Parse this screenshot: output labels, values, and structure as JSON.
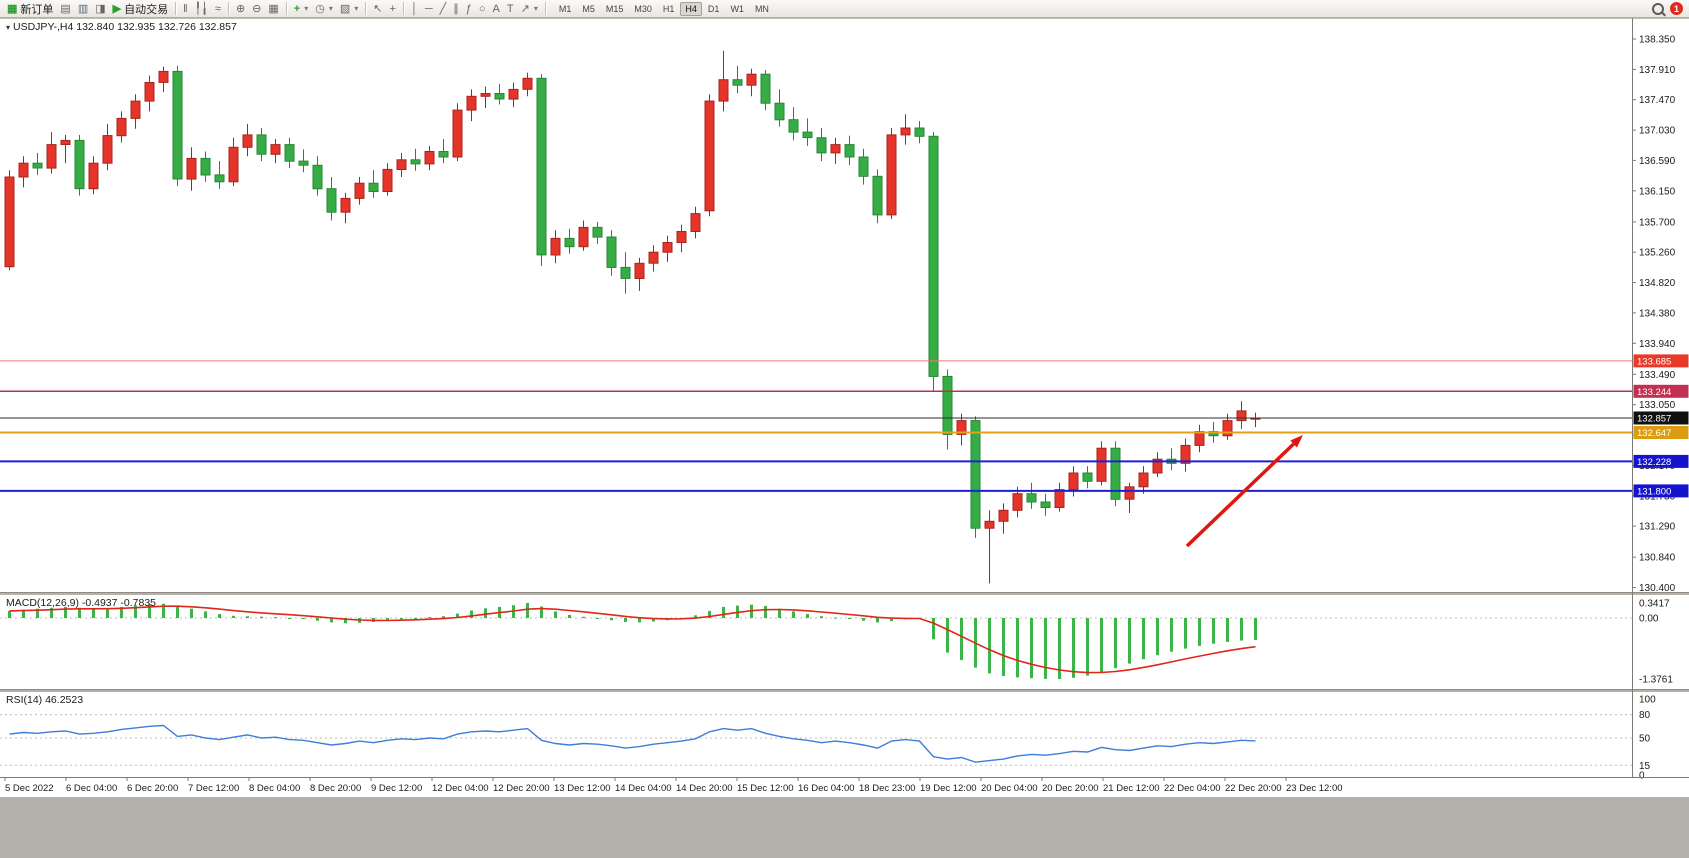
{
  "ui": {
    "toolbar": {
      "new_order_label": "新订单",
      "auto_trading_label": "自动交易",
      "timeframes": [
        "M1",
        "M5",
        "M15",
        "M30",
        "H1",
        "H4",
        "D1",
        "W1",
        "MN"
      ],
      "active_timeframe": "H4",
      "notification_count": "1",
      "icons": {
        "new_order": "▦",
        "chart_window": "▤",
        "profiles": "▥",
        "market_watch": "◨",
        "play": "▶",
        "bar_chart": "‖",
        "candlestick": "╿╽",
        "line_chart": "≈",
        "zoom_in": "⊕",
        "zoom_out": "⊖",
        "tile_windows": "▦",
        "indicators": "+",
        "periods": "◷",
        "templates": "▧",
        "cursor": "↖",
        "crosshair": "+",
        "vertical_line": "│",
        "horizontal_line": "─",
        "trendline": "╱",
        "channel": "∥",
        "fibonacci": "ƒ",
        "ellipse": "○",
        "text": "A",
        "label": "T",
        "arrows": "↗",
        "caret": "▾",
        "collapse": "▾"
      }
    },
    "symbol_header": "USDJPY-,H4 132.840 132.935 132.726 132.857",
    "macd_label": "MACD(12,26,9) -0.4937 -0.7835",
    "rsi_label": "RSI(14) 46.2523"
  },
  "chart_data": [
    {
      "type": "candlestick",
      "title": "USDJPY-,H4",
      "current_ohlc": {
        "open": "132.840",
        "high": "132.935",
        "low": "132.726",
        "close": "132.857"
      },
      "ylim": [
        130.4,
        138.35
      ],
      "y_ticks": [
        "138.350",
        "137.910",
        "137.470",
        "137.030",
        "136.590",
        "136.150",
        "135.700",
        "135.260",
        "134.820",
        "134.380",
        "133.940",
        "133.490",
        "133.050",
        "132.610",
        "132.170",
        "131.730",
        "131.290",
        "130.840",
        "130.400"
      ],
      "x_labels": [
        "5 Dec 2022",
        "6 Dec 04:00",
        "6 Dec 20:00",
        "7 Dec 12:00",
        "8 Dec 04:00",
        "8 Dec 20:00",
        "9 Dec 12:00",
        "12 Dec 04:00",
        "12 Dec 20:00",
        "13 Dec 12:00",
        "14 Dec 04:00",
        "14 Dec 20:00",
        "15 Dec 12:00",
        "16 Dec 04:00",
        "18 Dec 23:00",
        "19 Dec 12:00",
        "20 Dec 04:00",
        "20 Dec 20:00",
        "21 Dec 12:00",
        "22 Dec 04:00",
        "22 Dec 20:00",
        "23 Dec 12:00"
      ],
      "colors": {
        "up": "#e5352b",
        "up_border": "#a8241c",
        "down": "#35ad44",
        "down_border": "#278734"
      },
      "horizontal_lines": [
        {
          "price": 133.685,
          "label": "133.685",
          "color": "#f27a6a",
          "tag": "#e8392b",
          "width": 1
        },
        {
          "price": 133.244,
          "label": "133.244",
          "color": "#b23358",
          "tag": "#c22f52",
          "width": 1.5
        },
        {
          "price": 132.857,
          "label": "132.857",
          "color": "#2d2d2d",
          "tag": "#101010",
          "width": 1
        },
        {
          "price": 132.647,
          "label": "132.647",
          "color": "#e5a117",
          "tag": "#dd9c10",
          "width": 2
        },
        {
          "price": 132.228,
          "label": "132.228",
          "color": "#1f1fd6",
          "tag": "#1414cf",
          "width": 2
        },
        {
          "price": 131.8,
          "label": "131.800",
          "color": "#1f1fd6",
          "tag": "#1414cf",
          "width": 2
        }
      ],
      "annotation_arrow": {
        "from": [
          1187,
          546
        ],
        "to": [
          1303,
          435
        ],
        "color": "#e0170e"
      },
      "ohlc": [
        [
          135.05,
          136.45,
          135.0,
          136.35
        ],
        [
          136.35,
          136.65,
          136.2,
          136.55
        ],
        [
          136.55,
          136.7,
          136.38,
          136.48
        ],
        [
          136.48,
          137.0,
          136.4,
          136.82
        ],
        [
          136.82,
          136.96,
          136.55,
          136.88
        ],
        [
          136.88,
          136.96,
          136.08,
          136.18
        ],
        [
          136.18,
          136.65,
          136.1,
          136.55
        ],
        [
          136.55,
          137.12,
          136.45,
          136.95
        ],
        [
          136.95,
          137.3,
          136.85,
          137.2
        ],
        [
          137.2,
          137.55,
          137.05,
          137.45
        ],
        [
          137.45,
          137.82,
          137.3,
          137.72
        ],
        [
          137.72,
          137.95,
          137.58,
          137.88
        ],
        [
          137.88,
          137.96,
          136.22,
          136.32
        ],
        [
          136.32,
          136.78,
          136.15,
          136.62
        ],
        [
          136.62,
          136.72,
          136.28,
          136.38
        ],
        [
          136.38,
          136.58,
          136.18,
          136.28
        ],
        [
          136.28,
          136.92,
          136.22,
          136.78
        ],
        [
          136.78,
          137.12,
          136.65,
          136.96
        ],
        [
          136.96,
          137.06,
          136.58,
          136.68
        ],
        [
          136.68,
          136.9,
          136.55,
          136.82
        ],
        [
          136.82,
          136.92,
          136.48,
          136.58
        ],
        [
          136.58,
          136.75,
          136.42,
          136.52
        ],
        [
          136.52,
          136.65,
          136.08,
          136.18
        ],
        [
          136.18,
          136.35,
          135.72,
          135.84
        ],
        [
          135.84,
          136.12,
          135.68,
          136.04
        ],
        [
          136.04,
          136.35,
          135.95,
          136.26
        ],
        [
          136.26,
          136.45,
          136.05,
          136.14
        ],
        [
          136.14,
          136.55,
          136.08,
          136.46
        ],
        [
          136.46,
          136.7,
          136.35,
          136.6
        ],
        [
          136.6,
          136.76,
          136.44,
          136.54
        ],
        [
          136.54,
          136.8,
          136.45,
          136.72
        ],
        [
          136.72,
          136.9,
          136.55,
          136.64
        ],
        [
          136.64,
          137.42,
          136.58,
          137.32
        ],
        [
          137.32,
          137.62,
          137.16,
          137.52
        ],
        [
          137.52,
          137.66,
          137.35,
          137.56
        ],
        [
          137.56,
          137.7,
          137.4,
          137.48
        ],
        [
          137.48,
          137.72,
          137.36,
          137.62
        ],
        [
          137.62,
          137.86,
          137.52,
          137.78
        ],
        [
          137.78,
          137.84,
          135.06,
          135.22
        ],
        [
          135.22,
          135.58,
          135.1,
          135.46
        ],
        [
          135.46,
          135.6,
          135.24,
          135.34
        ],
        [
          135.34,
          135.72,
          135.28,
          135.62
        ],
        [
          135.62,
          135.7,
          135.38,
          135.48
        ],
        [
          135.48,
          135.58,
          134.92,
          135.04
        ],
        [
          135.04,
          135.26,
          134.66,
          134.88
        ],
        [
          134.88,
          135.18,
          134.7,
          135.1
        ],
        [
          135.1,
          135.36,
          134.98,
          135.26
        ],
        [
          135.26,
          135.5,
          135.12,
          135.4
        ],
        [
          135.4,
          135.66,
          135.26,
          135.56
        ],
        [
          135.56,
          135.92,
          135.46,
          135.82
        ],
        [
          135.86,
          137.55,
          135.78,
          137.45
        ],
        [
          137.45,
          138.18,
          137.3,
          137.76
        ],
        [
          137.76,
          137.96,
          137.56,
          137.68
        ],
        [
          137.68,
          137.92,
          137.52,
          137.84
        ],
        [
          137.84,
          137.9,
          137.32,
          137.42
        ],
        [
          137.42,
          137.62,
          137.08,
          137.18
        ],
        [
          137.18,
          137.36,
          136.88,
          137.0
        ],
        [
          137.0,
          137.2,
          136.8,
          136.92
        ],
        [
          136.92,
          137.06,
          136.58,
          136.7
        ],
        [
          136.7,
          136.92,
          136.54,
          136.82
        ],
        [
          136.82,
          136.95,
          136.52,
          136.64
        ],
        [
          136.64,
          136.76,
          136.24,
          136.36
        ],
        [
          136.36,
          136.46,
          135.68,
          135.8
        ],
        [
          135.8,
          137.06,
          135.74,
          136.96
        ],
        [
          136.96,
          137.26,
          136.82,
          137.06
        ],
        [
          137.06,
          137.16,
          136.84,
          136.94
        ],
        [
          136.94,
          137.0,
          133.24,
          133.46
        ],
        [
          133.46,
          133.56,
          132.4,
          132.62
        ],
        [
          132.62,
          132.92,
          132.46,
          132.82
        ],
        [
          132.82,
          132.88,
          131.12,
          131.26
        ],
        [
          131.26,
          131.52,
          130.46,
          131.36
        ],
        [
          131.36,
          131.62,
          131.18,
          131.52
        ],
        [
          131.52,
          131.86,
          131.42,
          131.76
        ],
        [
          131.76,
          131.92,
          131.54,
          131.64
        ],
        [
          131.64,
          131.76,
          131.44,
          131.56
        ],
        [
          131.56,
          131.92,
          131.5,
          131.82
        ],
        [
          131.82,
          132.16,
          131.72,
          132.06
        ],
        [
          132.06,
          132.16,
          131.84,
          131.94
        ],
        [
          131.94,
          132.52,
          131.88,
          132.42
        ],
        [
          132.42,
          132.52,
          131.58,
          131.68
        ],
        [
          131.68,
          131.92,
          131.48,
          131.86
        ],
        [
          131.86,
          132.16,
          131.76,
          132.06
        ],
        [
          132.06,
          132.36,
          132.0,
          132.26
        ],
        [
          132.26,
          132.42,
          132.1,
          132.2
        ],
        [
          132.2,
          132.56,
          132.08,
          132.46
        ],
        [
          132.46,
          132.76,
          132.36,
          132.66
        ],
        [
          132.66,
          132.8,
          132.5,
          132.6
        ],
        [
          132.6,
          132.92,
          132.54,
          132.82
        ],
        [
          132.82,
          133.1,
          132.7,
          132.96
        ],
        [
          132.84,
          132.935,
          132.726,
          132.857
        ]
      ]
    },
    {
      "type": "bar",
      "name": "MACD(12,26,9)",
      "current_main": "-0.4937",
      "current_signal": "-0.7835",
      "axis_labels": [
        "0.3417",
        "0.00",
        "-1.3761"
      ],
      "bar_color": "#3bb54a",
      "signal_color": "#e2261a",
      "values": [
        0.16,
        0.19,
        0.21,
        0.23,
        0.25,
        0.23,
        0.21,
        0.22,
        0.25,
        0.28,
        0.31,
        0.32,
        0.27,
        0.21,
        0.15,
        0.09,
        0.05,
        0.04,
        0.03,
        0.02,
        0.0,
        -0.02,
        -0.06,
        -0.1,
        -0.12,
        -0.11,
        -0.09,
        -0.06,
        -0.03,
        -0.01,
        0.02,
        0.04,
        0.1,
        0.17,
        0.22,
        0.25,
        0.29,
        0.34,
        0.26,
        0.15,
        0.07,
        0.03,
        -0.01,
        -0.05,
        -0.09,
        -0.1,
        -0.08,
        -0.05,
        -0.01,
        0.06,
        0.16,
        0.25,
        0.28,
        0.3,
        0.27,
        0.21,
        0.15,
        0.09,
        0.04,
        0.01,
        -0.02,
        -0.06,
        -0.1,
        -0.07,
        -0.03,
        -0.02,
        -0.48,
        -0.78,
        -0.95,
        -1.12,
        -1.25,
        -1.31,
        -1.34,
        -1.36,
        -1.375,
        -1.3761,
        -1.35,
        -1.3,
        -1.22,
        -1.13,
        -1.03,
        -0.93,
        -0.84,
        -0.76,
        -0.69,
        -0.63,
        -0.58,
        -0.54,
        -0.51,
        -0.4937
      ]
    },
    {
      "type": "line",
      "name": "RSI(14)",
      "current": "46.2523",
      "levels": [
        80,
        50,
        15
      ],
      "axis_labels": [
        "100",
        "80",
        "50",
        "15",
        "0"
      ],
      "line_color": "#3d7edb",
      "values": [
        55,
        57,
        56,
        58,
        59,
        55,
        56,
        58,
        61,
        63,
        65,
        66,
        52,
        54,
        50,
        48,
        51,
        54,
        50,
        51,
        48,
        47,
        44,
        41,
        43,
        46,
        44,
        47,
        49,
        48,
        50,
        49,
        55,
        58,
        59,
        58,
        60,
        62,
        47,
        43,
        41,
        43,
        42,
        40,
        37,
        39,
        42,
        44,
        46,
        49,
        58,
        62,
        60,
        62,
        56,
        52,
        49,
        47,
        44,
        46,
        44,
        41,
        37,
        46,
        48,
        46,
        26,
        23,
        25,
        19,
        21,
        23,
        27,
        29,
        28,
        30,
        33,
        32,
        38,
        35,
        34,
        37,
        40,
        39,
        42,
        44,
        43,
        45,
        47,
        46.25
      ]
    }
  ]
}
